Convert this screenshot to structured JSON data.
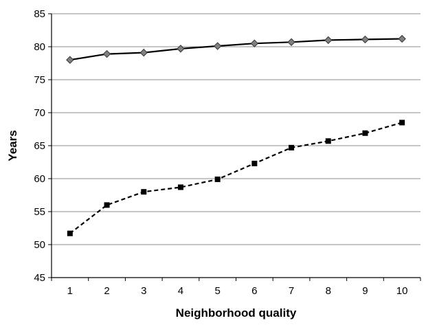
{
  "chart_data": {
    "type": "line",
    "title": "",
    "xlabel": "Neighborhood quality",
    "ylabel": "Years",
    "x": [
      1,
      2,
      3,
      4,
      5,
      6,
      7,
      8,
      9,
      10
    ],
    "x_tick_labels": [
      "1",
      "2",
      "3",
      "4",
      "5",
      "6",
      "7",
      "8",
      "9",
      "10"
    ],
    "ylim": [
      45,
      85
    ],
    "y_ticks": [
      45,
      50,
      55,
      60,
      65,
      70,
      75,
      80,
      85
    ],
    "y_tick_labels": [
      "45",
      "50",
      "55",
      "60",
      "65",
      "70",
      "75",
      "80",
      "85"
    ],
    "grid": "horizontal",
    "legend": "none",
    "series": [
      {
        "style": "solid",
        "marker": "diamond",
        "color": "#000000",
        "marker_color": "#808080",
        "values": [
          78.0,
          78.9,
          79.1,
          79.7,
          80.1,
          80.5,
          80.7,
          81.0,
          81.1,
          81.2
        ]
      },
      {
        "style": "dashed",
        "marker": "square",
        "color": "#000000",
        "marker_color": "#000000",
        "values": [
          51.7,
          56.0,
          58.0,
          58.7,
          59.9,
          62.3,
          64.7,
          65.7,
          66.9,
          68.5
        ]
      }
    ]
  }
}
